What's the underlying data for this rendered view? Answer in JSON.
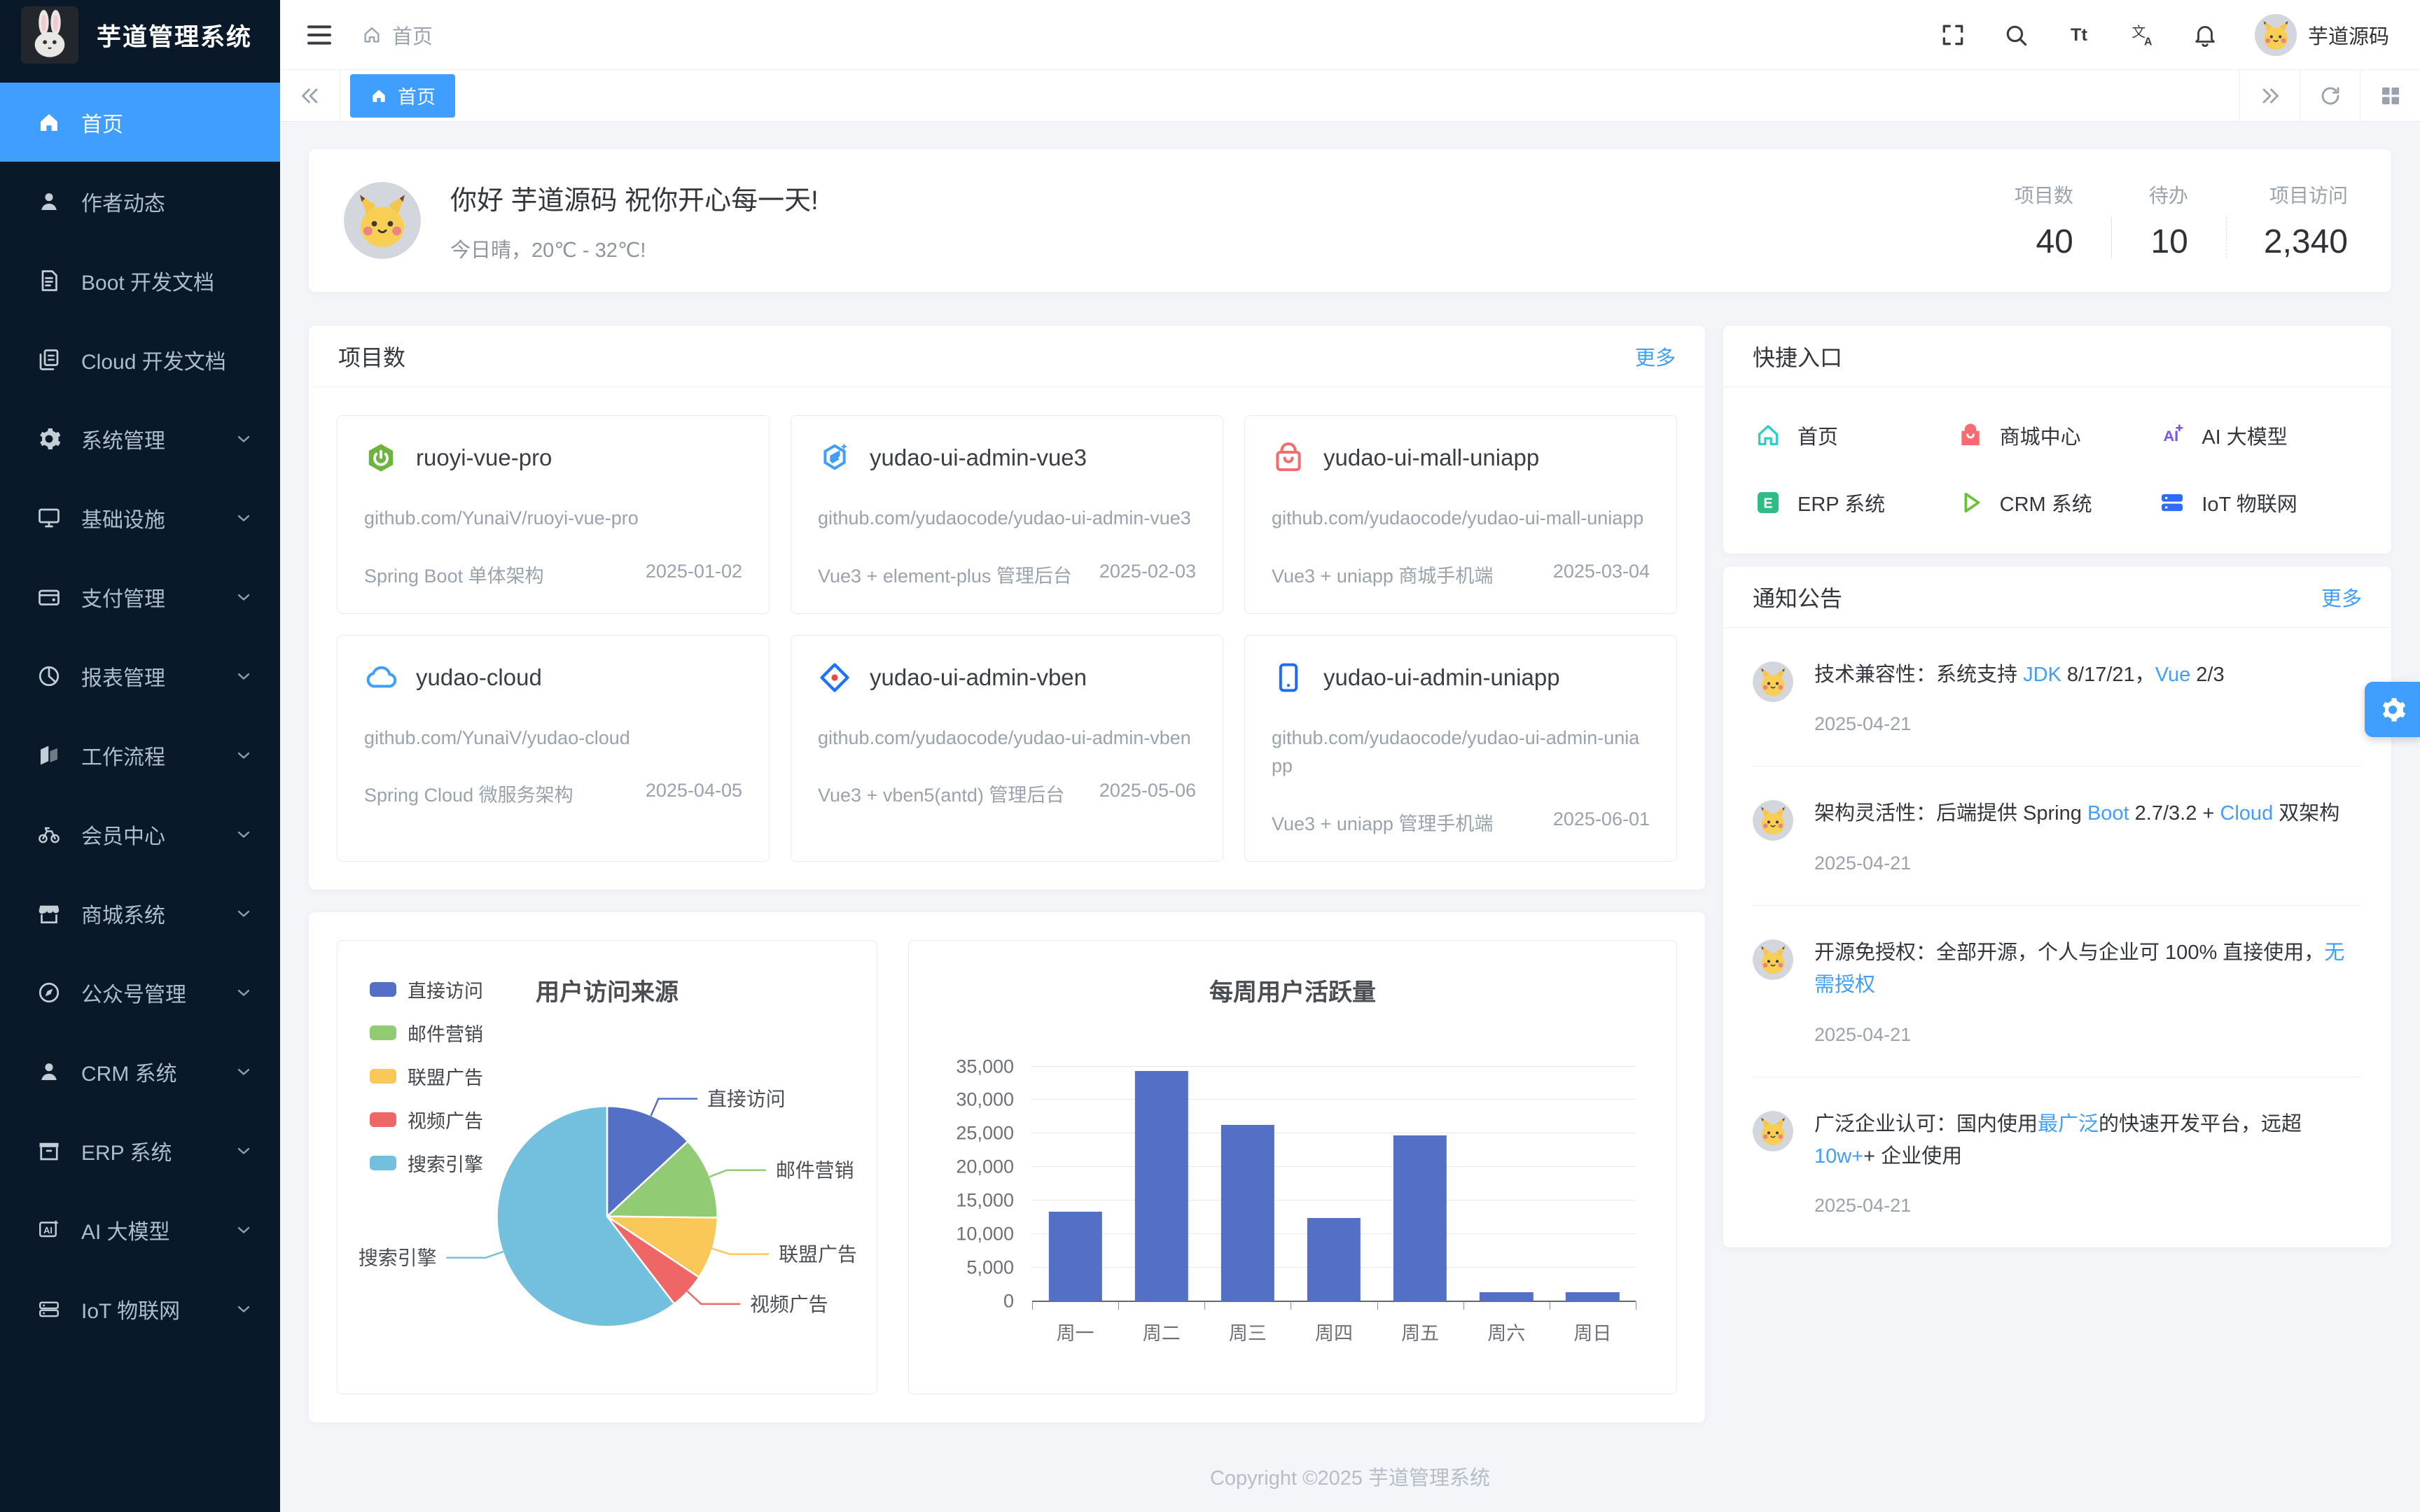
{
  "app": {
    "title": "芋道管理系统",
    "logo_icon": "rabbit-avatar"
  },
  "colors": {
    "primary": "#409EFF",
    "sidebar_bg": "#0a1929",
    "content_bg": "#f3f5f8",
    "link": "#409EFF"
  },
  "sidebar": {
    "menu": [
      {
        "key": "home",
        "icon": "home",
        "label": "首页",
        "active": true
      },
      {
        "key": "author",
        "icon": "user",
        "label": "作者动态"
      },
      {
        "key": "boot-docs",
        "icon": "document",
        "label": "Boot 开发文档"
      },
      {
        "key": "cloud-docs",
        "icon": "copy-document",
        "label": "Cloud 开发文档"
      },
      {
        "key": "system",
        "icon": "gear",
        "label": "系统管理",
        "expandable": true
      },
      {
        "key": "infra",
        "icon": "monitor",
        "label": "基础设施",
        "expandable": true
      },
      {
        "key": "pay",
        "icon": "wallet",
        "label": "支付管理",
        "expandable": true
      },
      {
        "key": "report",
        "icon": "pie-chart",
        "label": "报表管理",
        "expandable": true
      },
      {
        "key": "workflow",
        "icon": "workflow",
        "label": "工作流程",
        "expandable": true
      },
      {
        "key": "member",
        "icon": "bicycle",
        "label": "会员中心",
        "expandable": true
      },
      {
        "key": "mall",
        "icon": "shop",
        "label": "商城系统",
        "expandable": true
      },
      {
        "key": "mp",
        "icon": "compass",
        "label": "公众号管理",
        "expandable": true
      },
      {
        "key": "crm",
        "icon": "user-filled",
        "label": "CRM 系统",
        "expandable": true
      },
      {
        "key": "erp",
        "icon": "goods",
        "label": "ERP 系统",
        "expandable": true
      },
      {
        "key": "ai",
        "icon": "ai-model",
        "label": "AI 大模型",
        "expandable": true
      },
      {
        "key": "iot",
        "icon": "iot",
        "label": "IoT 物联网",
        "expandable": true
      }
    ]
  },
  "header": {
    "hamburger_icon": "menu",
    "breadcrumb_icon": "home-outline",
    "breadcrumb": "首页",
    "action_icons": [
      {
        "key": "fullscreen",
        "icon": "fullscreen"
      },
      {
        "key": "search",
        "icon": "search"
      },
      {
        "key": "font-size",
        "icon": "font-size"
      },
      {
        "key": "language",
        "icon": "language"
      },
      {
        "key": "notification",
        "icon": "bell"
      }
    ],
    "avatar_icon": "pikachu-avatar",
    "username": "芋道源码"
  },
  "tabbar": {
    "tabs": [
      {
        "label": "首页",
        "icon": "home",
        "active": true
      }
    ],
    "left_nav": "chevrons-left",
    "right_nav": [
      {
        "key": "scroll-right",
        "icon": "chevrons-right"
      },
      {
        "key": "refresh",
        "icon": "refresh"
      },
      {
        "key": "tab-options",
        "icon": "grid"
      }
    ]
  },
  "welcome": {
    "avatar_icon": "pikachu-avatar",
    "greeting": "你好 芋道源码 祝你开心每一天!",
    "weather": "今日晴，20℃ - 32℃!",
    "stats": [
      {
        "label": "项目数",
        "value": "40"
      },
      {
        "label": "待办",
        "value": "10"
      },
      {
        "label": "项目访问",
        "value": "2,340"
      }
    ]
  },
  "projects": {
    "title": "项目数",
    "more_label": "更多",
    "items": [
      {
        "icon": "spring-boot",
        "name": "ruoyi-vue-pro",
        "url": "github.com/YunaiV/ruoyi-vue-pro",
        "desc": "Spring Boot 单体架构",
        "date": "2025-01-02"
      },
      {
        "icon": "vue3",
        "name": "yudao-ui-admin-vue3",
        "url": "github.com/yudaocode/yudao-ui-admin-vue3",
        "desc": "Vue3 + element-plus 管理后台",
        "date": "2025-02-03"
      },
      {
        "icon": "mall-bag",
        "name": "yudao-ui-mall-uniapp",
        "url": "github.com/yudaocode/yudao-ui-mall-uniapp",
        "desc": "Vue3 + uniapp 商城手机端",
        "date": "2025-03-04"
      },
      {
        "icon": "cloud",
        "name": "yudao-cloud",
        "url": "github.com/YunaiV/yudao-cloud",
        "desc": "Spring Cloud 微服务架构",
        "date": "2025-04-05"
      },
      {
        "icon": "vben",
        "name": "yudao-ui-admin-vben",
        "url": "github.com/yudaocode/yudao-ui-admin-vben",
        "desc": "Vue3 + vben5(antd) 管理后台",
        "date": "2025-05-06"
      },
      {
        "icon": "uniapp-phone",
        "name": "yudao-ui-admin-uniapp",
        "url": "github.com/yudaocode/yudao-ui-admin-uniapp",
        "desc": "Vue3 + uniapp 管理手机端",
        "date": "2025-06-01"
      }
    ]
  },
  "shortcuts": {
    "title": "快捷入口",
    "items": [
      {
        "key": "home",
        "icon": "sc-home",
        "label": "首页",
        "color": "#2ed0c6"
      },
      {
        "key": "mall-center",
        "icon": "sc-mall",
        "label": "商城中心",
        "color": "#fa6b71"
      },
      {
        "key": "ai-model",
        "icon": "sc-ai",
        "label": "AI 大模型",
        "color": "#7d52f4"
      },
      {
        "key": "erp",
        "icon": "sc-erp",
        "label": "ERP 系统",
        "color": "#2ebd85"
      },
      {
        "key": "crm",
        "icon": "sc-crm",
        "label": "CRM 系统",
        "color": "#67c23a"
      },
      {
        "key": "iot",
        "icon": "sc-iot",
        "label": "IoT 物联网",
        "color": "#2f6bff"
      }
    ]
  },
  "notices": {
    "title": "通知公告",
    "more_label": "更多",
    "avatar_icon": "pikachu-avatar",
    "items": [
      {
        "date": "2025-04-21",
        "parts": [
          {
            "text": "技术兼容性：系统支持 "
          },
          {
            "text": "JDK",
            "highlight": true
          },
          {
            "text": " 8/17/21，"
          },
          {
            "text": "Vue",
            "highlight": true
          },
          {
            "text": " 2/3"
          }
        ]
      },
      {
        "date": "2025-04-21",
        "parts": [
          {
            "text": "架构灵活性：后端提供 Spring "
          },
          {
            "text": "Boot",
            "highlight": true
          },
          {
            "text": " 2.7/3.2 + "
          },
          {
            "text": "Cloud",
            "highlight": true
          },
          {
            "text": " 双架构"
          }
        ]
      },
      {
        "date": "2025-04-21",
        "parts": [
          {
            "text": "开源免授权：全部开源，个人与企业可 100% 直接使用，"
          },
          {
            "text": "无需授权",
            "highlight": true
          }
        ]
      },
      {
        "date": "2025-04-21",
        "parts": [
          {
            "text": "广泛企业认可：国内使用"
          },
          {
            "text": "最广泛",
            "highlight": true
          },
          {
            "text": "的快速开发平台，远超 "
          },
          {
            "text": "10w+",
            "highlight": true
          },
          {
            "text": "+ 企业使用"
          }
        ]
      }
    ]
  },
  "chart_data": [
    {
      "type": "pie",
      "title": "用户访问来源",
      "legend_position": "top-left-vertical",
      "labels": [
        "直接访问",
        "邮件营销",
        "联盟广告",
        "视频广告",
        "搜索引擎"
      ],
      "values": [
        335,
        310,
        234,
        135,
        1548
      ],
      "colors": [
        "#5470C6",
        "#91CC75",
        "#FAC858",
        "#EE6666",
        "#73C0DE"
      ]
    },
    {
      "type": "bar",
      "title": "每周用户活跃量",
      "categories": [
        "周一",
        "周二",
        "周三",
        "周四",
        "周五",
        "周六",
        "周日"
      ],
      "values": [
        13300,
        34300,
        26300,
        12400,
        24700,
        1300,
        1300
      ],
      "ylim": [
        0,
        35000
      ],
      "ytick_step": 5000,
      "bar_color": "#5470C6",
      "grid": true
    }
  ],
  "floating": {
    "settings_icon": "gear"
  },
  "footer": {
    "copyright": "Copyright ©2025 芋道管理系统"
  }
}
